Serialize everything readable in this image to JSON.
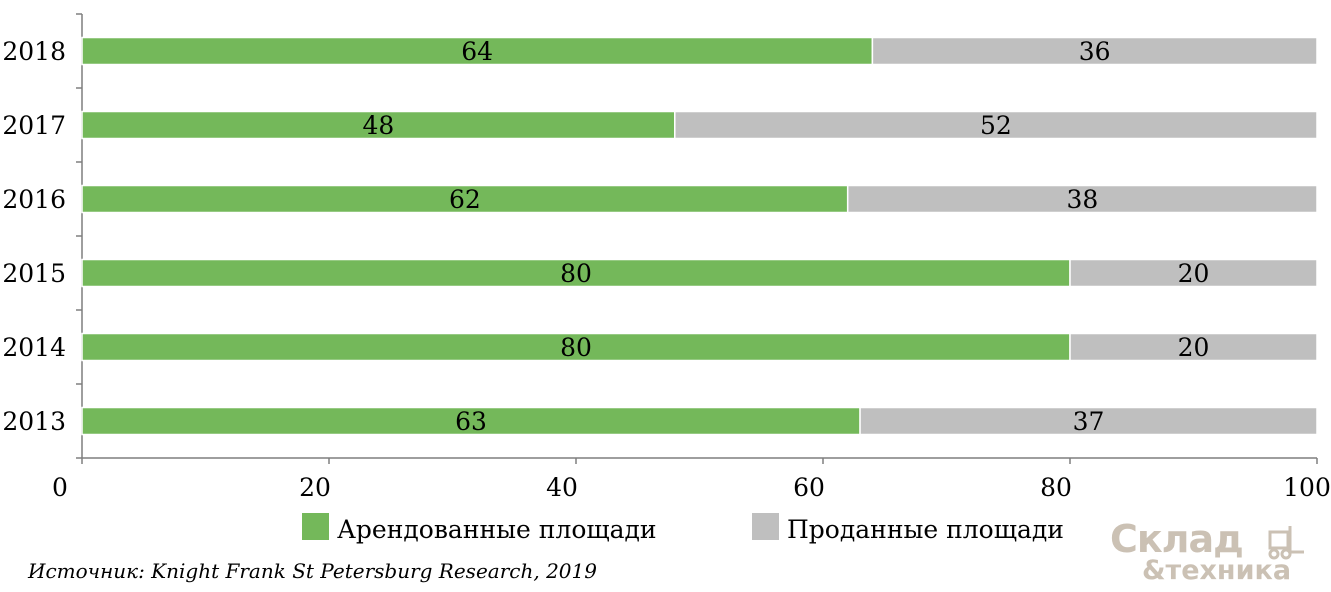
{
  "chart_data": {
    "type": "bar",
    "orientation": "horizontal",
    "stacked": true,
    "categories": [
      "2018",
      "2017",
      "2016",
      "2015",
      "2014",
      "2013"
    ],
    "series": [
      {
        "name": "Арендованные площади",
        "color": "#74b85a",
        "values": [
          64,
          48,
          62,
          80,
          80,
          63
        ]
      },
      {
        "name": "Проданные площади",
        "color": "#bfbfbf",
        "values": [
          36,
          52,
          38,
          20,
          20,
          37
        ]
      }
    ],
    "xlim": [
      0,
      100
    ],
    "xticks": [
      0,
      20,
      40,
      60,
      80,
      100
    ],
    "grid": false,
    "legend_position": "bottom"
  },
  "source": "Источник: Knight Frank St Petersburg Research, 2019",
  "watermark": {
    "line1": "Склад",
    "line2": "&техника",
    "icon": "forklift-icon"
  }
}
